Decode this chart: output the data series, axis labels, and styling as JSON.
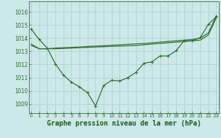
{
  "background_color": "#cce8e8",
  "grid_color": "#aacccc",
  "line_color": "#2d6e2d",
  "xlabel": "Graphe pression niveau de la mer (hPa)",
  "xlabel_color": "#1a5c1a",
  "ylim": [
    1008.3,
    1016.8
  ],
  "xlim": [
    -0.3,
    23.3
  ],
  "yticks": [
    1009,
    1010,
    1011,
    1012,
    1013,
    1014,
    1015,
    1016
  ],
  "xticks": [
    0,
    1,
    2,
    3,
    4,
    5,
    6,
    7,
    8,
    9,
    10,
    11,
    12,
    13,
    14,
    15,
    16,
    17,
    18,
    19,
    20,
    21,
    22,
    23
  ],
  "line1_y": [
    1014.7,
    1013.9,
    1013.25,
    1012.05,
    1011.2,
    1010.65,
    1010.3,
    1009.85,
    1008.85,
    1010.4,
    1010.8,
    1010.75,
    1011.0,
    1011.4,
    1012.1,
    1012.2,
    1012.65,
    1012.65,
    1013.05,
    1013.8,
    1013.8,
    1014.05,
    1015.05,
    1015.65
  ],
  "line2_y": [
    1013.55,
    1013.2,
    1013.2,
    1013.2,
    1013.22,
    1013.25,
    1013.28,
    1013.3,
    1013.33,
    1013.35,
    1013.38,
    1013.4,
    1013.42,
    1013.45,
    1013.5,
    1013.55,
    1013.6,
    1013.65,
    1013.7,
    1013.75,
    1013.8,
    1013.85,
    1014.25,
    1015.55
  ],
  "line3_y": [
    1013.45,
    1013.2,
    1013.2,
    1013.25,
    1013.28,
    1013.3,
    1013.33,
    1013.37,
    1013.4,
    1013.43,
    1013.47,
    1013.5,
    1013.53,
    1013.57,
    1013.6,
    1013.65,
    1013.7,
    1013.75,
    1013.8,
    1013.85,
    1013.9,
    1014.0,
    1014.4,
    1015.72
  ],
  "tick_fontsize": 5.5,
  "xlabel_fontsize": 7.0,
  "lw": 0.9,
  "marker_size": 3.0
}
